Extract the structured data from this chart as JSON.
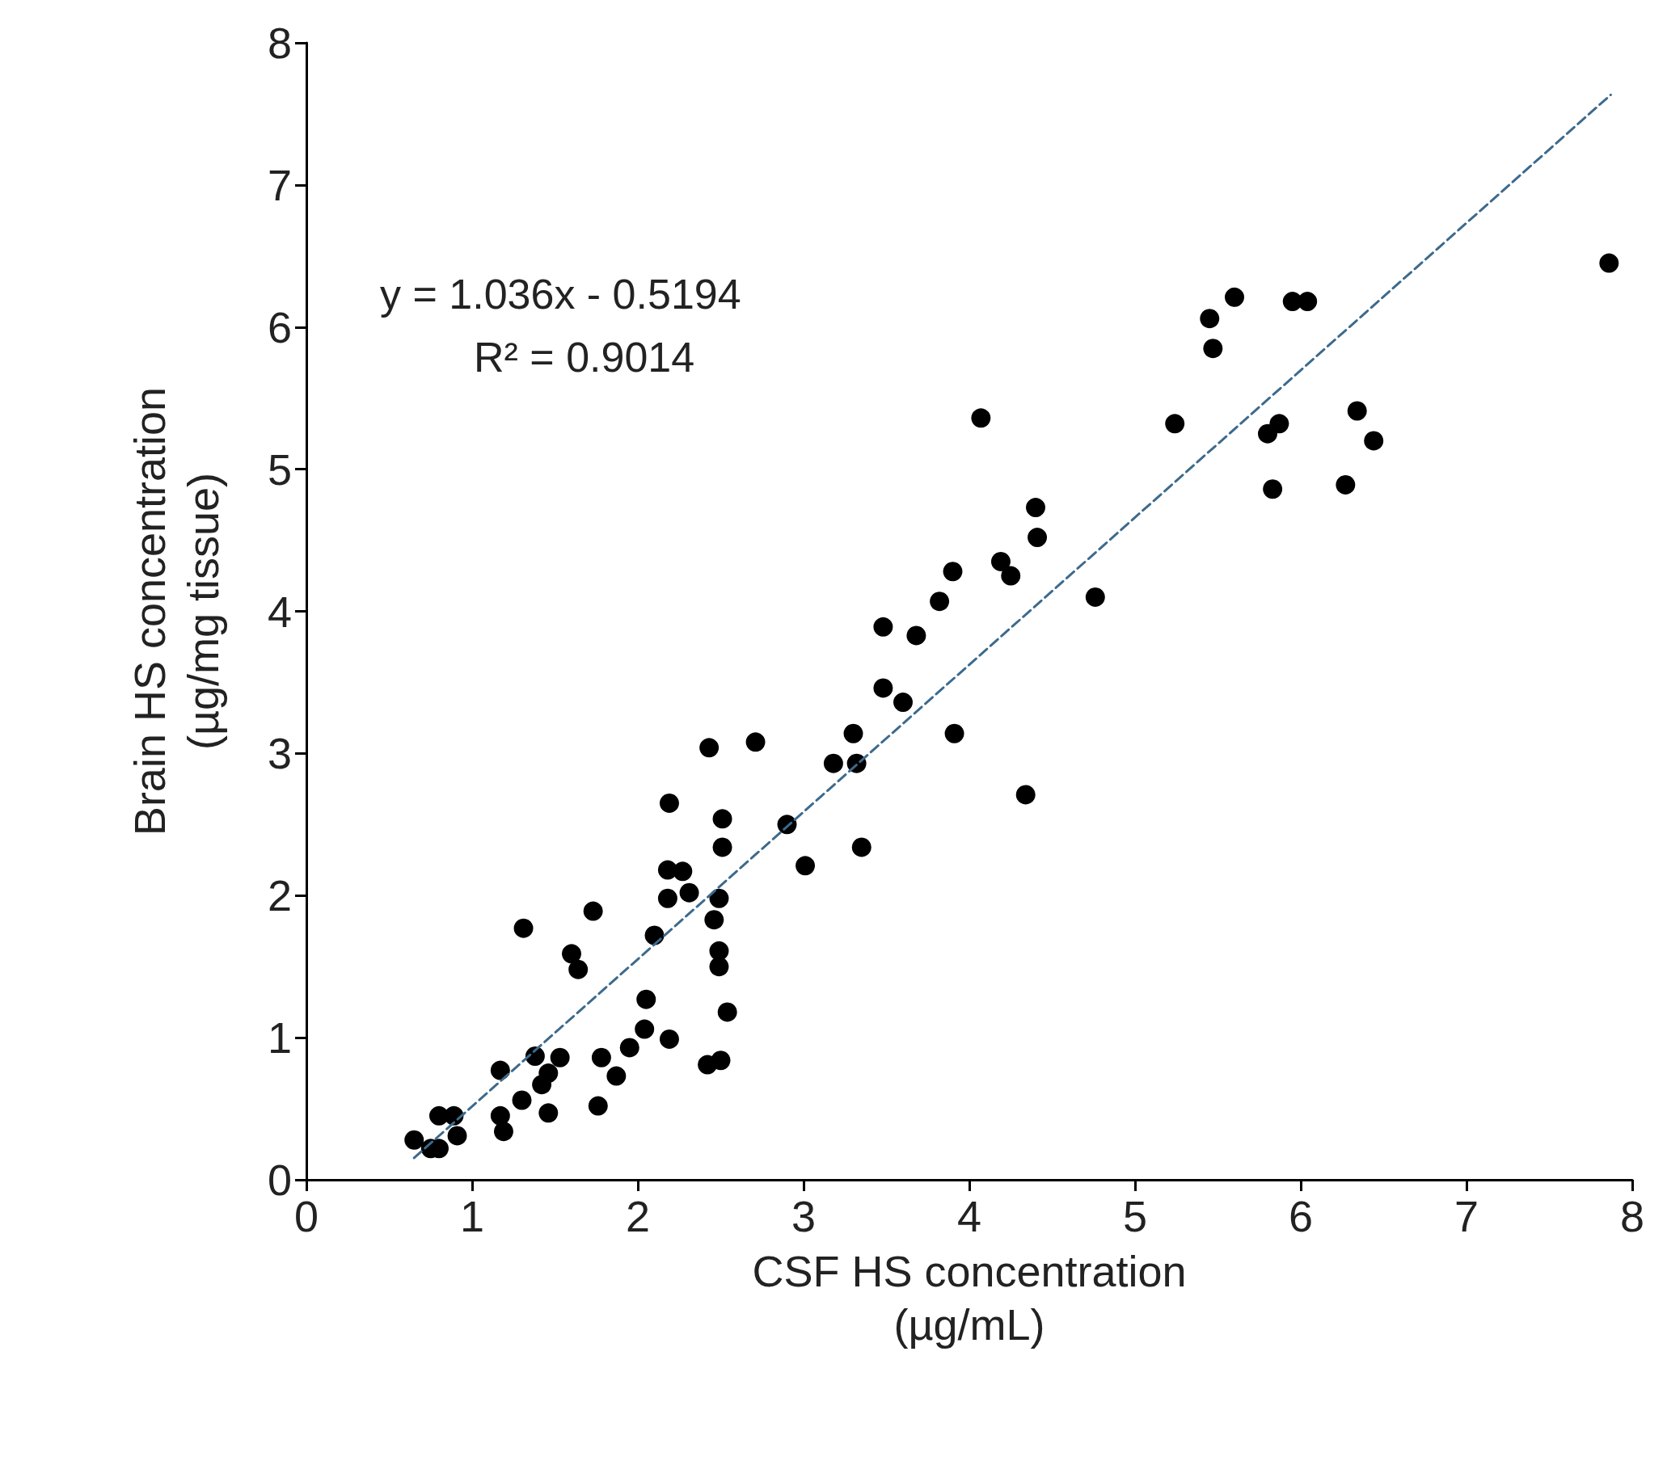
{
  "chart_data": {
    "type": "scatter",
    "xlabel": "CSF HS concentration\n(µg/mL)",
    "ylabel": "Brain HS concentration\n(µg/mg tissue)",
    "xlim": [
      0,
      8
    ],
    "xticks": [
      0,
      1,
      2,
      3,
      4,
      5,
      6,
      7,
      8
    ],
    "ylim": [
      0,
      8
    ],
    "yticks": [
      0,
      1,
      2,
      3,
      4,
      5,
      6,
      7,
      8
    ],
    "grid": false,
    "marker": "circle",
    "annotations": [
      "y = 1.036x - 0.5194",
      "R² = 0.9014"
    ],
    "series": [
      {
        "color": "#000000",
        "x": [
          0.65,
          0.75,
          0.8,
          0.8,
          0.89,
          0.91,
          1.17,
          1.17,
          1.19,
          1.3,
          1.31,
          1.38,
          1.42,
          1.46,
          1.46,
          1.53,
          1.6,
          1.64,
          1.73,
          1.76,
          1.78,
          1.87,
          1.95,
          2.04,
          2.05,
          2.1,
          2.18,
          2.18,
          2.19,
          2.19,
          2.27,
          2.31,
          2.42,
          2.43,
          2.46,
          2.49,
          2.49,
          2.49,
          2.5,
          2.51,
          2.51,
          2.54,
          2.71,
          2.9,
          3.01,
          3.18,
          3.3,
          3.32,
          3.35,
          3.48,
          3.48,
          3.6,
          3.68,
          3.82,
          3.9,
          3.91,
          4.07,
          4.19,
          4.25,
          4.34,
          4.4,
          4.41,
          4.76,
          5.24,
          5.45,
          5.47,
          5.6,
          5.8,
          5.83,
          5.87,
          5.95,
          6.04,
          6.27,
          6.34,
          6.44,
          7.86
        ],
        "values": [
          0.28,
          0.22,
          0.45,
          0.22,
          0.45,
          0.31,
          0.77,
          0.45,
          0.34,
          0.56,
          1.77,
          0.87,
          0.67,
          0.75,
          0.47,
          0.86,
          1.59,
          1.48,
          1.89,
          0.52,
          0.86,
          0.73,
          0.93,
          1.06,
          1.27,
          1.72,
          2.18,
          1.98,
          2.65,
          0.99,
          2.17,
          2.02,
          0.81,
          3.04,
          1.83,
          1.98,
          1.61,
          1.5,
          0.84,
          2.54,
          2.34,
          1.18,
          3.08,
          2.5,
          2.21,
          2.93,
          3.14,
          2.93,
          2.34,
          3.89,
          3.46,
          3.36,
          3.83,
          4.07,
          4.28,
          3.14,
          5.36,
          4.35,
          4.25,
          2.71,
          4.73,
          4.52,
          4.1,
          5.32,
          6.06,
          5.85,
          6.21,
          5.25,
          4.86,
          5.32,
          6.18,
          6.18,
          4.89,
          5.41,
          5.2,
          6.45
        ]
      },
      {
        "type": "line",
        "color": "#3d6a8c",
        "line_style": "dashed",
        "marker": "none",
        "x": [
          0.65,
          7.87
        ],
        "values": [
          0.154,
          7.634
        ]
      }
    ]
  }
}
